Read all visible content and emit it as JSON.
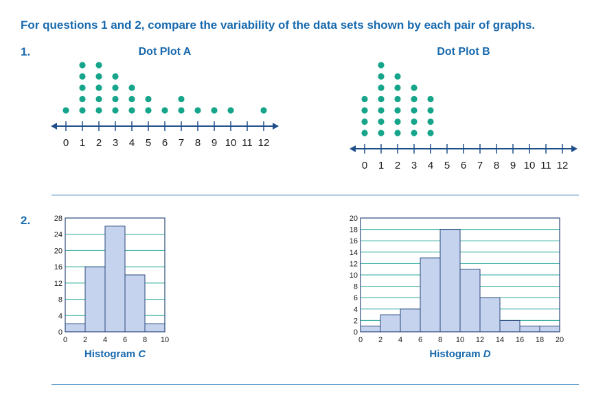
{
  "instructions": "For questions 1 and 2, compare the variability of the data sets shown by each pair of graphs.",
  "questions": [
    {
      "number": "1."
    },
    {
      "number": "2."
    }
  ],
  "colors": {
    "accent": "#1769ad",
    "dot": "#16a58a",
    "bar_fill": "#c6d3ef",
    "bar_stroke": "#2a4a7a",
    "grid": "#26a89a",
    "axis": "#1f4f8a"
  },
  "chart_data": [
    {
      "type": "scatter",
      "subtype": "dot_plot",
      "title": "Dot Plot A",
      "axis_ticks": [
        0,
        1,
        2,
        3,
        4,
        5,
        6,
        7,
        8,
        9,
        10,
        11,
        12
      ],
      "counts": [
        1,
        5,
        5,
        4,
        3,
        2,
        1,
        2,
        1,
        1,
        1,
        0,
        1
      ],
      "xlim": [
        0,
        12
      ]
    },
    {
      "type": "scatter",
      "subtype": "dot_plot",
      "title": "Dot Plot B",
      "axis_ticks": [
        0,
        1,
        2,
        3,
        4,
        5,
        6,
        7,
        8,
        9,
        10,
        11,
        12
      ],
      "counts": [
        4,
        7,
        6,
        5,
        4,
        0,
        0,
        0,
        0,
        0,
        0,
        0,
        0
      ],
      "xlim": [
        0,
        12
      ]
    },
    {
      "type": "bar",
      "subtype": "histogram",
      "title_prefix": "Histogram ",
      "title_var": "C",
      "bin_edges": [
        0,
        2,
        4,
        6,
        8,
        10
      ],
      "values": [
        2,
        16,
        26,
        14,
        2
      ],
      "yticks": [
        0,
        4,
        8,
        12,
        16,
        20,
        24,
        28
      ],
      "ylim": [
        0,
        28
      ],
      "xticks": [
        0,
        2,
        4,
        6,
        8,
        10
      ]
    },
    {
      "type": "bar",
      "subtype": "histogram",
      "title_prefix": "Histogram ",
      "title_var": "D",
      "bin_edges": [
        0,
        2,
        4,
        6,
        8,
        10,
        12,
        14,
        16,
        18,
        20
      ],
      "values": [
        1,
        3,
        4,
        13,
        18,
        11,
        6,
        2,
        1,
        1
      ],
      "yticks": [
        0,
        2,
        4,
        6,
        8,
        10,
        12,
        14,
        16,
        18,
        20
      ],
      "ylim": [
        0,
        20
      ],
      "xticks": [
        0,
        2,
        4,
        6,
        8,
        10,
        12,
        14,
        16,
        18,
        20
      ]
    }
  ]
}
